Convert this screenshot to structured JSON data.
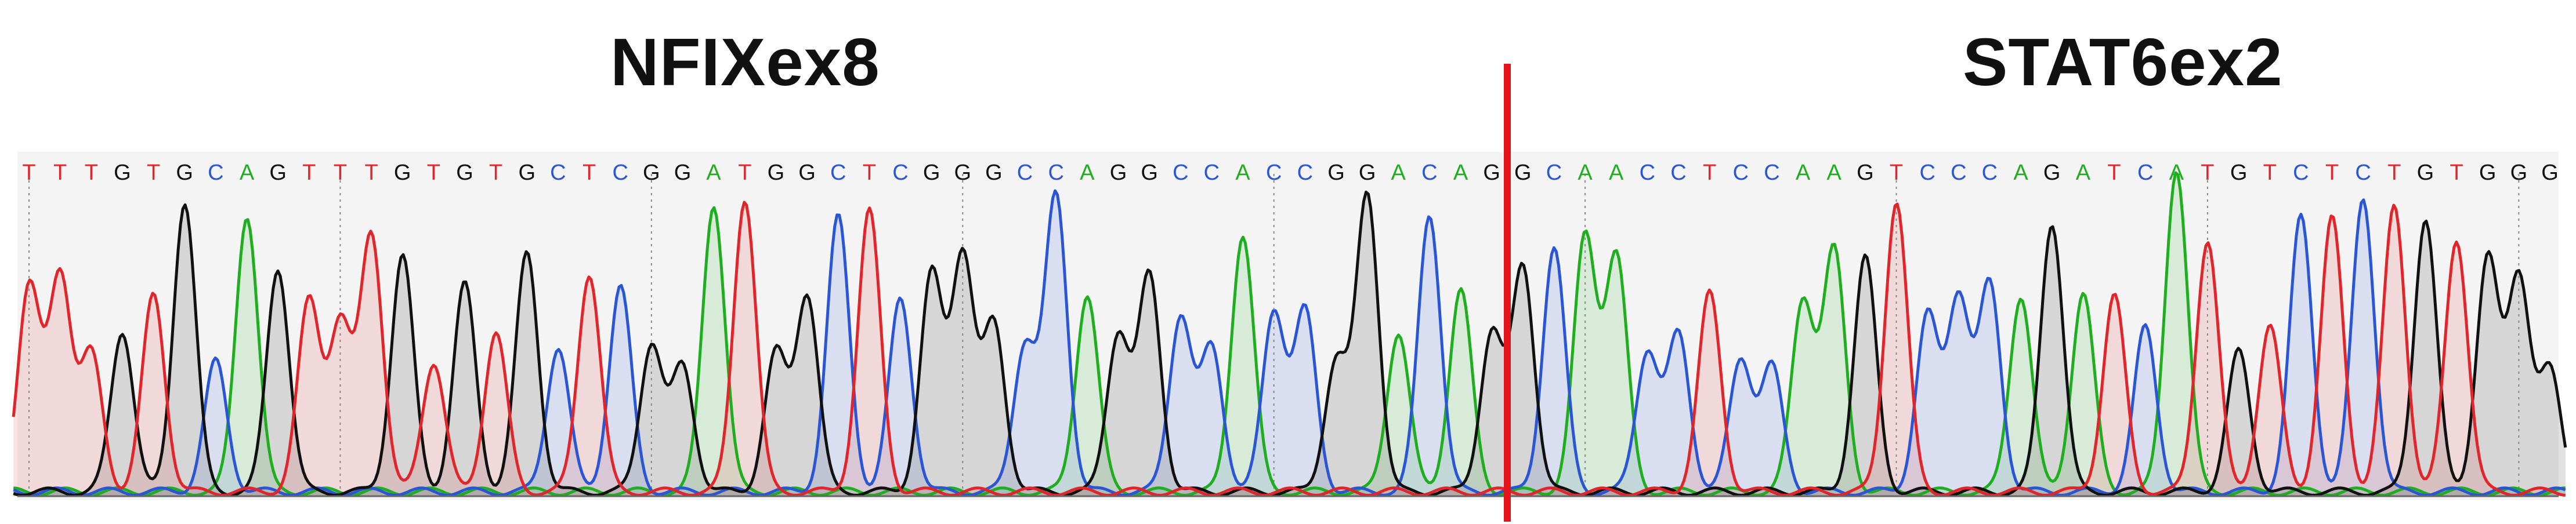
{
  "labels": {
    "left_gene": "NFIXex8",
    "right_gene": "STAT6ex2"
  },
  "sequence": "TTTGTGCAGTTTGTGTGCTCGGATGGCTCGGGCCAGGCCACCGGACAGGCAACCTCCAAGTCCCAGATCATGTCTCTGTGGG",
  "junction_after_base": 48,
  "colors": {
    "A": "#1fae1f",
    "C": "#2a56d6",
    "G": "#111111",
    "T": "#e0262a",
    "junction_line": "#e3141c",
    "panel_bg": "#f4f4f4"
  }
}
